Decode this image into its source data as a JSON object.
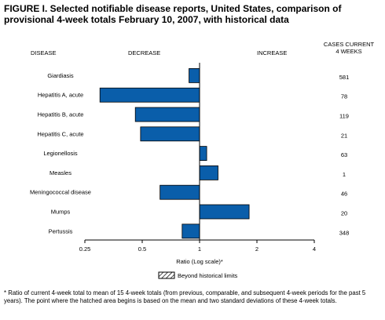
{
  "title": "FIGURE I. Selected notifiable disease reports, United States, comparison of provisional 4-week totals February 10, 2007, with historical data",
  "headers": {
    "disease": "DISEASE",
    "decrease": "DECREASE",
    "increase": "INCREASE",
    "cases_line1": "CASES CURRENT",
    "cases_line2": "4 WEEKS"
  },
  "legend": {
    "label": "Beyond historical limits"
  },
  "footnote": "* Ratio of current 4-week total to mean of 15 4-week totals (from previous, comparable, and subsequent 4-week periods for the past 5 years). The point where the hatched area begins is based on the mean and two standard deviations of these 4-week totals.",
  "colors": {
    "bar": "#0a5eaa",
    "bar_stroke": "#000000"
  },
  "chart_data": {
    "type": "bar",
    "orientation": "horizontal",
    "xscale": "log2",
    "xlim": [
      0.25,
      4
    ],
    "xticks": [
      0.25,
      0.5,
      1,
      2,
      4
    ],
    "xtick_labels": [
      "0.25",
      "0.5",
      "1",
      "2",
      "4"
    ],
    "xlabel": "Ratio (Log scale)*",
    "baseline": 1,
    "categories": [
      "Giardiasis",
      "Hepatitis A, acute",
      "Hepatitis B, acute",
      "Hepatitis C, acute",
      "Legionellosis",
      "Measles",
      "Meningococcal disease",
      "Mumps",
      "Pertussis"
    ],
    "values": [
      0.88,
      0.3,
      0.46,
      0.49,
      1.09,
      1.25,
      0.62,
      1.82,
      0.81
    ],
    "cases": [
      "581",
      "78",
      "119",
      "21",
      "63",
      "1",
      "46",
      "20",
      "348"
    ]
  }
}
